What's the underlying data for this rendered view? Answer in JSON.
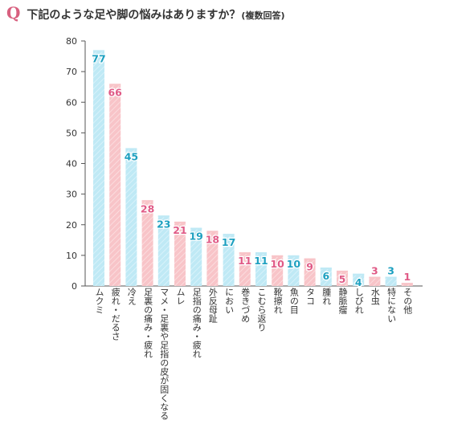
{
  "question": {
    "mark": "Q",
    "text": "下記のような足や脚の悩みはありますか？",
    "note": "(複数回答)"
  },
  "colors": {
    "blue_bar": "#bfe9f5",
    "blue_hatch": "#d8f2fa",
    "blue_label": "#1da0c0",
    "pink_bar": "#f8c4c8",
    "pink_hatch": "#fbdcde",
    "pink_label": "#e05a86",
    "axis": "#555555"
  },
  "chart_data": {
    "type": "bar",
    "title": "",
    "xlabel": "",
    "ylabel": "",
    "ylim": [
      0,
      80
    ],
    "yticks": [
      0,
      10,
      20,
      30,
      40,
      50,
      60,
      70,
      80
    ],
    "grid": false,
    "categories": [
      "ムクミ",
      "疲れ・だるさ",
      "冷え",
      "足裏の痛み・疲れ",
      "マメ・足裏や足指の皮が固くなる",
      "ムレ",
      "足指の痛み・疲れ",
      "外反母趾",
      "におい",
      "巻きづめ",
      "こむら返り",
      "靴擦れ",
      "魚の目",
      "タコ",
      "腫れ",
      "静脈瘤",
      "しびれ",
      "水虫",
      "特にない",
      "その他"
    ],
    "values": [
      77,
      66,
      45,
      28,
      23,
      21,
      19,
      18,
      17,
      11,
      11,
      10,
      10,
      9,
      6,
      5,
      4,
      3,
      3,
      1
    ],
    "value_labels": [
      "77",
      "66",
      "45",
      "28",
      "23",
      "21",
      "19",
      "18",
      "17",
      "11",
      "11",
      "10",
      "10",
      "9",
      "6",
      "5",
      "4",
      "3",
      "3",
      "1"
    ],
    "tick_labels": [
      "0",
      "10",
      "20",
      "30",
      "40",
      "50",
      "60",
      "70",
      "80"
    ]
  }
}
